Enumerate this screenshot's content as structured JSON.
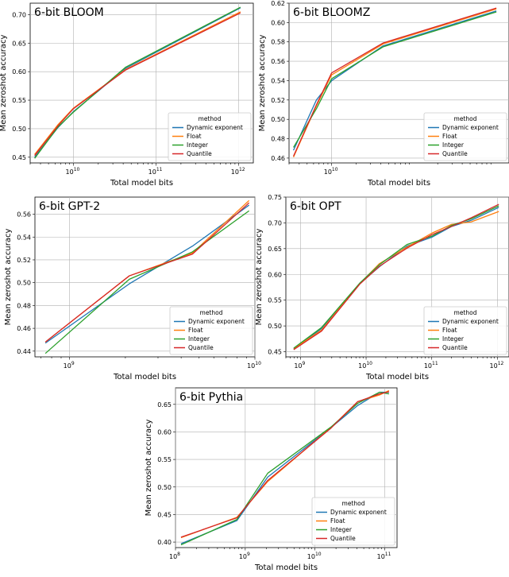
{
  "chart_data": [
    {
      "type": "line",
      "title": "6-bit BLOOM",
      "xlabel": "Total model bits",
      "ylabel": "Mean zeroshot accuracy",
      "xscale": "log",
      "xlim": [
        3000000000.0,
        1500000000000.0
      ],
      "ylim": [
        0.44,
        0.72
      ],
      "xticks": [
        {
          "value": 10000000000.0,
          "label": "10"
        },
        {
          "value": 100000000000.0,
          "label": "11"
        },
        {
          "value": 1000000000000.0,
          "label": "12"
        }
      ],
      "yticks": [
        0.45,
        0.5,
        0.55,
        0.6,
        0.65,
        0.7
      ],
      "ytick_labels": [
        "0.45",
        "0.50",
        "0.55",
        "0.60",
        "0.65",
        "0.70"
      ],
      "legend": {
        "title": "method",
        "position": "lower-right"
      },
      "series": [
        {
          "name": "Dynamic exponent",
          "color": "#1f77b4",
          "x": [
            3400000000.0,
            6500000000.0,
            10000000000.0,
            43000000000.0,
            1050000000000.0
          ],
          "y": [
            0.45,
            0.502,
            0.53,
            0.606,
            0.712
          ]
        },
        {
          "name": "Float",
          "color": "#ff7f0e",
          "x": [
            3400000000.0,
            6500000000.0,
            10000000000.0,
            43000000000.0,
            1050000000000.0
          ],
          "y": [
            0.455,
            0.507,
            0.536,
            0.604,
            0.705
          ]
        },
        {
          "name": "Integer",
          "color": "#2ca02c",
          "x": [
            3400000000.0,
            6500000000.0,
            10000000000.0,
            43000000000.0,
            1050000000000.0
          ],
          "y": [
            0.448,
            0.503,
            0.529,
            0.608,
            0.713
          ]
        },
        {
          "name": "Quantile",
          "color": "#d62728",
          "x": [
            3400000000.0,
            6500000000.0,
            10000000000.0,
            43000000000.0,
            1050000000000.0
          ],
          "y": [
            0.453,
            0.505,
            0.535,
            0.603,
            0.703
          ]
        }
      ]
    },
    {
      "type": "line",
      "title": "6-bit BLOOMZ",
      "xlabel": "Total model bits",
      "ylabel": "Mean zeroshot accuracy",
      "xscale": "log",
      "xlim": [
        3000000000.0,
        1500000000000.0
      ],
      "ylim": [
        0.455,
        0.62
      ],
      "xticks": [
        {
          "value": 10000000000.0,
          "label": "10"
        }
      ],
      "yticks": [
        0.46,
        0.48,
        0.5,
        0.52,
        0.54,
        0.56,
        0.58,
        0.6,
        0.62
      ],
      "ytick_labels": [
        "0.46",
        "0.48",
        "0.50",
        "0.52",
        "0.54",
        "0.56",
        "0.58",
        "0.60",
        "0.62"
      ],
      "legend": {
        "title": "method",
        "position": "lower-right"
      },
      "series": [
        {
          "name": "Dynamic exponent",
          "color": "#1f77b4",
          "x": [
            3400000000.0,
            6500000000.0,
            10000000000.0,
            43000000000.0,
            1050000000000.0
          ],
          "y": [
            0.468,
            0.52,
            0.54,
            0.576,
            0.612
          ]
        },
        {
          "name": "Float",
          "color": "#ff7f0e",
          "x": [
            3400000000.0,
            6500000000.0,
            10000000000.0,
            43000000000.0,
            1050000000000.0
          ],
          "y": [
            0.461,
            0.514,
            0.546,
            0.578,
            0.614
          ]
        },
        {
          "name": "Integer",
          "color": "#2ca02c",
          "x": [
            3400000000.0,
            6500000000.0,
            10000000000.0,
            43000000000.0,
            1050000000000.0
          ],
          "y": [
            0.471,
            0.511,
            0.542,
            0.575,
            0.611
          ]
        },
        {
          "name": "Quantile",
          "color": "#d62728",
          "x": [
            3400000000.0,
            6500000000.0,
            10000000000.0,
            43000000000.0,
            1050000000000.0
          ],
          "y": [
            0.462,
            0.515,
            0.548,
            0.579,
            0.615
          ]
        }
      ]
    },
    {
      "type": "line",
      "title": "6-bit GPT-2",
      "xlabel": "Total model bits",
      "ylabel": "Mean zeroshot accuracy",
      "xscale": "log",
      "xlim": [
        650000000.0,
        10000000000.0
      ],
      "ylim": [
        0.435,
        0.575
      ],
      "xticks": [
        {
          "value": 1000000000.0,
          "label": "9"
        },
        {
          "value": 10000000000.0,
          "label": "10"
        }
      ],
      "yticks": [
        0.44,
        0.46,
        0.48,
        0.5,
        0.52,
        0.54,
        0.56
      ],
      "ytick_labels": [
        "0.44",
        "0.46",
        "0.48",
        "0.50",
        "0.52",
        "0.54",
        "0.56"
      ],
      "legend": {
        "title": "method",
        "position": "lower-right"
      },
      "series": [
        {
          "name": "Dynamic exponent",
          "color": "#1f77b4",
          "x": [
            740000000.0,
            2100000000.0,
            4600000000.0,
            9300000000.0
          ],
          "y": [
            0.447,
            0.499,
            0.532,
            0.568
          ]
        },
        {
          "name": "Float",
          "color": "#ff7f0e",
          "x": [
            740000000.0,
            2100000000.0,
            4600000000.0,
            9300000000.0
          ],
          "y": [
            0.448,
            0.506,
            0.526,
            0.572
          ]
        },
        {
          "name": "Integer",
          "color": "#2ca02c",
          "x": [
            740000000.0,
            2100000000.0,
            4600000000.0,
            9300000000.0
          ],
          "y": [
            0.438,
            0.503,
            0.527,
            0.563
          ]
        },
        {
          "name": "Quantile",
          "color": "#d62728",
          "x": [
            740000000.0,
            2100000000.0,
            4600000000.0,
            9300000000.0
          ],
          "y": [
            0.448,
            0.506,
            0.525,
            0.57
          ]
        }
      ]
    },
    {
      "type": "line",
      "title": "6-bit OPT",
      "xlabel": "Total model bits",
      "ylabel": "Mean zeroshot accuracy",
      "xscale": "log",
      "xlim": [
        600000000.0,
        1500000000000.0
      ],
      "ylim": [
        0.44,
        0.75
      ],
      "xticks": [
        {
          "value": 1000000000.0,
          "label": "9"
        },
        {
          "value": 10000000000.0,
          "label": "10"
        },
        {
          "value": 100000000000.0,
          "label": "11"
        },
        {
          "value": 1000000000000.0,
          "label": "12"
        }
      ],
      "yticks": [
        0.45,
        0.5,
        0.55,
        0.6,
        0.65,
        0.7,
        0.75
      ],
      "ytick_labels": [
        "0.45",
        "0.50",
        "0.55",
        "0.60",
        "0.65",
        "0.70",
        "0.75"
      ],
      "legend": {
        "title": "method",
        "position": "lower-right"
      },
      "series": [
        {
          "name": "Dynamic exponent",
          "color": "#1f77b4",
          "x": [
            790000000.0,
            2100000000.0,
            8000000000.0,
            16000000000.0,
            42000000000.0,
            100000000000.0,
            200000000000.0,
            400000000000.0,
            1050000000000.0
          ],
          "y": [
            0.455,
            0.495,
            0.582,
            0.615,
            0.655,
            0.672,
            0.693,
            0.705,
            0.73
          ]
        },
        {
          "name": "Float",
          "color": "#ff7f0e",
          "x": [
            790000000.0,
            2100000000.0,
            8000000000.0,
            16000000000.0,
            42000000000.0,
            100000000000.0,
            200000000000.0,
            400000000000.0,
            1050000000000.0
          ],
          "y": [
            0.456,
            0.492,
            0.582,
            0.621,
            0.653,
            0.68,
            0.697,
            0.702,
            0.722
          ]
        },
        {
          "name": "Integer",
          "color": "#2ca02c",
          "x": [
            790000000.0,
            2100000000.0,
            8000000000.0,
            16000000000.0,
            42000000000.0,
            100000000000.0,
            200000000000.0,
            400000000000.0,
            1050000000000.0
          ],
          "y": [
            0.457,
            0.497,
            0.583,
            0.619,
            0.658,
            0.674,
            0.695,
            0.708,
            0.733
          ]
        },
        {
          "name": "Quantile",
          "color": "#d62728",
          "x": [
            790000000.0,
            2100000000.0,
            8000000000.0,
            16000000000.0,
            42000000000.0,
            100000000000.0,
            200000000000.0,
            400000000000.0,
            1050000000000.0
          ],
          "y": [
            0.454,
            0.49,
            0.581,
            0.616,
            0.651,
            0.677,
            0.693,
            0.71,
            0.736
          ]
        }
      ]
    },
    {
      "type": "line",
      "title": "6-bit Pythia",
      "xlabel": "Total model bits",
      "ylabel": "Mean zeroshot accuracy",
      "xscale": "log",
      "xlim": [
        100000000.0,
        150000000000.0
      ],
      "ylim": [
        0.39,
        0.68
      ],
      "xticks": [
        {
          "value": 100000000.0,
          "label": "8"
        },
        {
          "value": 1000000000.0,
          "label": "9"
        },
        {
          "value": 10000000000.0,
          "label": "10"
        },
        {
          "value": 100000000000.0,
          "label": "11"
        }
      ],
      "yticks": [
        0.4,
        0.45,
        0.5,
        0.55,
        0.6,
        0.65
      ],
      "ytick_labels": [
        "0.40",
        "0.45",
        "0.50",
        "0.55",
        "0.60",
        "0.65"
      ],
      "legend": {
        "title": "method",
        "position": "lower-right"
      },
      "series": [
        {
          "name": "Dynamic exponent",
          "color": "#1f77b4",
          "x": [
            120000000.0,
            760000000.0,
            2100000000.0,
            17000000000.0,
            41000000000.0,
            84000000000.0,
            115000000000.0
          ],
          "y": [
            0.397,
            0.439,
            0.518,
            0.608,
            0.648,
            0.672,
            0.672
          ]
        },
        {
          "name": "Float",
          "color": "#ff7f0e",
          "x": [
            120000000.0,
            760000000.0,
            2100000000.0,
            17000000000.0,
            41000000000.0,
            84000000000.0,
            115000000000.0
          ],
          "y": [
            0.408,
            0.445,
            0.51,
            0.608,
            0.655,
            0.667,
            0.675
          ]
        },
        {
          "name": "Integer",
          "color": "#2ca02c",
          "x": [
            120000000.0,
            760000000.0,
            2100000000.0,
            17000000000.0,
            41000000000.0,
            84000000000.0,
            115000000000.0
          ],
          "y": [
            0.395,
            0.441,
            0.525,
            0.609,
            0.652,
            0.672,
            0.669
          ]
        },
        {
          "name": "Quantile",
          "color": "#d62728",
          "x": [
            120000000.0,
            760000000.0,
            2100000000.0,
            17000000000.0,
            41000000000.0,
            84000000000.0,
            115000000000.0
          ],
          "y": [
            0.409,
            0.444,
            0.512,
            0.607,
            0.655,
            0.669,
            0.673
          ]
        }
      ]
    }
  ]
}
